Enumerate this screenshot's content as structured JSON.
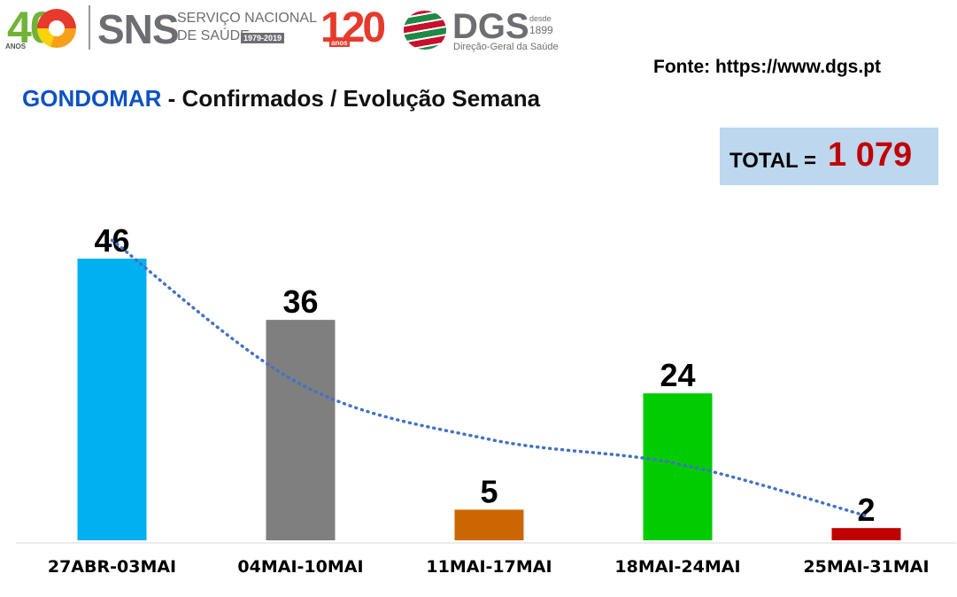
{
  "header": {
    "logo_40": {
      "number": "40",
      "sub": "ANOS"
    },
    "logo_sns": {
      "abbr": "SNS",
      "line1": "SERVIÇO NACIONAL",
      "line2": "DE SAÚDE",
      "years": "1979-2019"
    },
    "logo_120": {
      "number": "120",
      "sub": "anos"
    },
    "logo_dgs": {
      "abbr": "DGS",
      "desde": "desde",
      "year": "1899",
      "subtitle": "Direção-Geral da Saúde"
    },
    "source": "Fonte: https://www.dgs.pt"
  },
  "title": {
    "place": "GONDOMAR",
    "rest": " - Confirmados / Evolução Semana"
  },
  "total": {
    "label": "TOTAL = ",
    "value": "1 079"
  },
  "colors": {
    "title_place": "#0b52c4",
    "total_value": "#c00000",
    "total_box": "#bdd7ee",
    "trendline": "#4472c4"
  },
  "chart_data": {
    "type": "bar",
    "categories": [
      "27ABR-03MAI",
      "04MAI-10MAI",
      "11MAI-17MAI",
      "18MAI-24MAI",
      "25MAI-31MAI"
    ],
    "values": [
      46,
      36,
      5,
      24,
      2
    ],
    "bar_colors": [
      "#00b0f0",
      "#7f7f7f",
      "#cc6600",
      "#00cc00",
      "#c00000"
    ],
    "data_labels": [
      "46",
      "36",
      "5",
      "24",
      "2"
    ],
    "trendline": {
      "style": "dotted",
      "color": "#4472c4",
      "values": [
        49,
        25.5,
        16.5,
        12.5,
        4
      ]
    },
    "ylim": [
      0,
      46
    ],
    "grid": false,
    "legend": "none"
  }
}
